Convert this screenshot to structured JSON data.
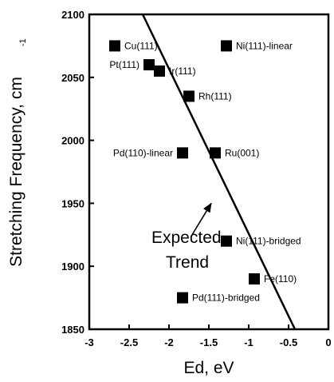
{
  "chart_data": {
    "type": "scatter",
    "xlabel": "Ed, eV",
    "ylabel": "Stretching Frequency, cm",
    "ylabel_sub": "-1",
    "xlim": [
      -3,
      0
    ],
    "ylim": [
      1850,
      2100
    ],
    "x_ticks": [
      -3,
      -2.5,
      -2,
      -1.5,
      -1,
      -0.5,
      0
    ],
    "x_tick_labels": [
      "-3",
      "-2.5",
      "-2",
      "-1.5",
      "-1",
      "-0.5",
      "0"
    ],
    "y_ticks": [
      1850,
      1900,
      1950,
      2000,
      2050,
      2100
    ],
    "y_tick_labels": [
      "1850",
      "1900",
      "1950",
      "2000",
      "2050",
      "2100"
    ],
    "grid": false,
    "points": [
      {
        "label": "Cu(111)",
        "x": -2.68,
        "y": 2075,
        "label_pos": "right"
      },
      {
        "label": "Pt(111)",
        "x": -2.25,
        "y": 2060,
        "label_pos": "left"
      },
      {
        "label": "Ir(111)",
        "x": -2.12,
        "y": 2055,
        "label_pos": "right"
      },
      {
        "label": "Ni(111)-linear",
        "x": -1.28,
        "y": 2075,
        "label_pos": "right"
      },
      {
        "label": "Rh(111)",
        "x": -1.75,
        "y": 2035,
        "label_pos": "right"
      },
      {
        "label": "Pd(110)-linear",
        "x": -1.83,
        "y": 1990,
        "label_pos": "left"
      },
      {
        "label": "Ru(001)",
        "x": -1.42,
        "y": 1990,
        "label_pos": "right"
      },
      {
        "label": "Ni(111)-bridged",
        "x": -1.28,
        "y": 1920,
        "label_pos": "right"
      },
      {
        "label": "Fe(110)",
        "x": -0.93,
        "y": 1890,
        "label_pos": "right"
      },
      {
        "label": "Pd(111)-bridged",
        "x": -1.83,
        "y": 1875,
        "label_pos": "right"
      }
    ],
    "trend_line": {
      "x": [
        -2.33,
        -0.42
      ],
      "y": [
        2100,
        1850
      ]
    },
    "annotation": {
      "lines": [
        "Expected",
        "Trend"
      ],
      "text_at": {
        "x": -2.22,
        "y": 1923
      },
      "arrow_from": {
        "x": -1.72,
        "y": 1924
      },
      "arrow_to": {
        "x": -1.47,
        "y": 1950
      }
    }
  }
}
